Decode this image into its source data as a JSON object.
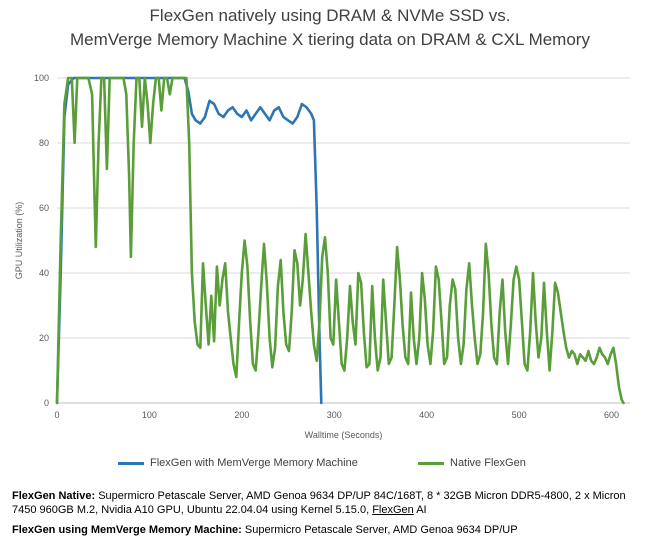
{
  "chart_data": {
    "type": "line",
    "title": [
      "FlexGen natively using DRAM & NVMe SSD vs.",
      "MemVerge Memory Machine X tiering data on DRAM & CXL Memory"
    ],
    "xlabel": "Walltime (Seconds)",
    "ylabel": "GPU Utilization (%)",
    "xlim": [
      0,
      620
    ],
    "ylim": [
      0,
      100
    ],
    "x_ticks": [
      0,
      100,
      200,
      300,
      400,
      500,
      600
    ],
    "y_ticks": [
      0,
      20,
      40,
      60,
      80,
      100
    ],
    "grid": "horizontal",
    "legend_position": "bottom",
    "series": [
      {
        "name": "FlexGen with MemVerge Memory Machine",
        "color": "#2e75b6",
        "points": [
          [
            0,
            0
          ],
          [
            4,
            40
          ],
          [
            8,
            88
          ],
          [
            12,
            98
          ],
          [
            18,
            100
          ],
          [
            40,
            100
          ],
          [
            80,
            100
          ],
          [
            120,
            100
          ],
          [
            138,
            100
          ],
          [
            142,
            96
          ],
          [
            146,
            89
          ],
          [
            150,
            87
          ],
          [
            155,
            86
          ],
          [
            160,
            88
          ],
          [
            165,
            93
          ],
          [
            170,
            92
          ],
          [
            175,
            89
          ],
          [
            180,
            88
          ],
          [
            185,
            90
          ],
          [
            190,
            91
          ],
          [
            195,
            89
          ],
          [
            200,
            88
          ],
          [
            205,
            90
          ],
          [
            210,
            87
          ],
          [
            215,
            89
          ],
          [
            220,
            91
          ],
          [
            225,
            89
          ],
          [
            230,
            87
          ],
          [
            235,
            90
          ],
          [
            240,
            91
          ],
          [
            245,
            88
          ],
          [
            250,
            87
          ],
          [
            255,
            86
          ],
          [
            260,
            88
          ],
          [
            265,
            92
          ],
          [
            270,
            91
          ],
          [
            275,
            89
          ],
          [
            278,
            87
          ],
          [
            281,
            60
          ],
          [
            284,
            20
          ],
          [
            286,
            0
          ]
        ]
      },
      {
        "name": "Native FlexGen",
        "color": "#5a9e3a",
        "points": [
          [
            0,
            0
          ],
          [
            4,
            50
          ],
          [
            8,
            92
          ],
          [
            12,
            100
          ],
          [
            16,
            100
          ],
          [
            19,
            80
          ],
          [
            22,
            100
          ],
          [
            26,
            100
          ],
          [
            30,
            100
          ],
          [
            34,
            100
          ],
          [
            38,
            95
          ],
          [
            40,
            70
          ],
          [
            42,
            48
          ],
          [
            45,
            80
          ],
          [
            48,
            100
          ],
          [
            51,
            100
          ],
          [
            54,
            72
          ],
          [
            57,
            100
          ],
          [
            60,
            100
          ],
          [
            64,
            100
          ],
          [
            68,
            100
          ],
          [
            72,
            100
          ],
          [
            75,
            95
          ],
          [
            78,
            70
          ],
          [
            80,
            45
          ],
          [
            83,
            80
          ],
          [
            86,
            100
          ],
          [
            89,
            100
          ],
          [
            92,
            85
          ],
          [
            95,
            100
          ],
          [
            98,
            92
          ],
          [
            101,
            80
          ],
          [
            104,
            92
          ],
          [
            107,
            100
          ],
          [
            110,
            100
          ],
          [
            113,
            90
          ],
          [
            116,
            100
          ],
          [
            119,
            100
          ],
          [
            122,
            95
          ],
          [
            125,
            100
          ],
          [
            128,
            100
          ],
          [
            131,
            100
          ],
          [
            134,
            100
          ],
          [
            137,
            100
          ],
          [
            140,
            100
          ],
          [
            143,
            80
          ],
          [
            146,
            40
          ],
          [
            149,
            25
          ],
          [
            152,
            18
          ],
          [
            155,
            17
          ],
          [
            158,
            43
          ],
          [
            161,
            30
          ],
          [
            164,
            18
          ],
          [
            167,
            33
          ],
          [
            170,
            19
          ],
          [
            173,
            42
          ],
          [
            176,
            30
          ],
          [
            179,
            38
          ],
          [
            182,
            43
          ],
          [
            185,
            28
          ],
          [
            188,
            20
          ],
          [
            191,
            12
          ],
          [
            194,
            8
          ],
          [
            197,
            25
          ],
          [
            200,
            40
          ],
          [
            203,
            50
          ],
          [
            206,
            42
          ],
          [
            209,
            25
          ],
          [
            212,
            12
          ],
          [
            215,
            10
          ],
          [
            218,
            22
          ],
          [
            221,
            36
          ],
          [
            224,
            49
          ],
          [
            227,
            37
          ],
          [
            230,
            20
          ],
          [
            233,
            11
          ],
          [
            236,
            17
          ],
          [
            239,
            36
          ],
          [
            242,
            44
          ],
          [
            245,
            28
          ],
          [
            248,
            18
          ],
          [
            251,
            16
          ],
          [
            254,
            28
          ],
          [
            257,
            47
          ],
          [
            260,
            43
          ],
          [
            263,
            30
          ],
          [
            266,
            38
          ],
          [
            269,
            52
          ],
          [
            272,
            40
          ],
          [
            275,
            28
          ],
          [
            278,
            18
          ],
          [
            281,
            13
          ],
          [
            284,
            25
          ],
          [
            287,
            45
          ],
          [
            290,
            51
          ],
          [
            293,
            40
          ],
          [
            296,
            20
          ],
          [
            299,
            18
          ],
          [
            302,
            38
          ],
          [
            305,
            25
          ],
          [
            308,
            12
          ],
          [
            311,
            10
          ],
          [
            314,
            20
          ],
          [
            317,
            36
          ],
          [
            320,
            25
          ],
          [
            323,
            18
          ],
          [
            326,
            40
          ],
          [
            329,
            37
          ],
          [
            332,
            22
          ],
          [
            335,
            11
          ],
          [
            338,
            12
          ],
          [
            341,
            36
          ],
          [
            344,
            20
          ],
          [
            347,
            10
          ],
          [
            350,
            14
          ],
          [
            353,
            38
          ],
          [
            356,
            25
          ],
          [
            359,
            12
          ],
          [
            362,
            14
          ],
          [
            365,
            30
          ],
          [
            368,
            48
          ],
          [
            371,
            38
          ],
          [
            374,
            24
          ],
          [
            377,
            14
          ],
          [
            380,
            12
          ],
          [
            383,
            34
          ],
          [
            386,
            20
          ],
          [
            389,
            12
          ],
          [
            392,
            20
          ],
          [
            395,
            40
          ],
          [
            398,
            32
          ],
          [
            401,
            18
          ],
          [
            404,
            12
          ],
          [
            407,
            22
          ],
          [
            410,
            42
          ],
          [
            413,
            38
          ],
          [
            416,
            25
          ],
          [
            419,
            12
          ],
          [
            422,
            14
          ],
          [
            425,
            30
          ],
          [
            428,
            38
          ],
          [
            431,
            35
          ],
          [
            434,
            20
          ],
          [
            437,
            12
          ],
          [
            440,
            18
          ],
          [
            443,
            35
          ],
          [
            446,
            43
          ],
          [
            449,
            30
          ],
          [
            452,
            20
          ],
          [
            455,
            12
          ],
          [
            458,
            15
          ],
          [
            461,
            28
          ],
          [
            464,
            49
          ],
          [
            467,
            40
          ],
          [
            470,
            24
          ],
          [
            473,
            14
          ],
          [
            476,
            12
          ],
          [
            479,
            28
          ],
          [
            482,
            38
          ],
          [
            485,
            22
          ],
          [
            488,
            12
          ],
          [
            491,
            24
          ],
          [
            494,
            38
          ],
          [
            497,
            42
          ],
          [
            500,
            38
          ],
          [
            503,
            25
          ],
          [
            506,
            12
          ],
          [
            509,
            10
          ],
          [
            512,
            22
          ],
          [
            515,
            40
          ],
          [
            518,
            25
          ],
          [
            521,
            14
          ],
          [
            524,
            20
          ],
          [
            527,
            37
          ],
          [
            530,
            22
          ],
          [
            533,
            10
          ],
          [
            536,
            22
          ],
          [
            539,
            37
          ],
          [
            542,
            34
          ],
          [
            545,
            28
          ],
          [
            548,
            22
          ],
          [
            551,
            17
          ],
          [
            554,
            14
          ],
          [
            557,
            16
          ],
          [
            560,
            15
          ],
          [
            563,
            12
          ],
          [
            566,
            15
          ],
          [
            569,
            14
          ],
          [
            572,
            13
          ],
          [
            575,
            16
          ],
          [
            578,
            13
          ],
          [
            581,
            12
          ],
          [
            584,
            14
          ],
          [
            587,
            17
          ],
          [
            590,
            15
          ],
          [
            593,
            14
          ],
          [
            596,
            12
          ],
          [
            599,
            15
          ],
          [
            602,
            17
          ],
          [
            605,
            12
          ],
          [
            608,
            5
          ],
          [
            611,
            1
          ],
          [
            613,
            0
          ]
        ]
      }
    ]
  },
  "notes": [
    {
      "bold": "FlexGen Native:",
      "text": " Supermicro Petascale Server, AMD Genoa 9634 DP/UP 84C/168T, 8 * 32GB Micron DDR5-4800, 2 x Micron 7450 960GB M.2, Nvidia A10 GPU, Ubuntu 22.04.04  using Kernel 5.15.0, ",
      "link": "FlexGen",
      "tail": "  AI"
    },
    {
      "bold": "FlexGen using MemVerge Memory Machine:",
      "text": " Supermicro Petascale Server, AMD Genoa 9634 DP/UP"
    }
  ]
}
